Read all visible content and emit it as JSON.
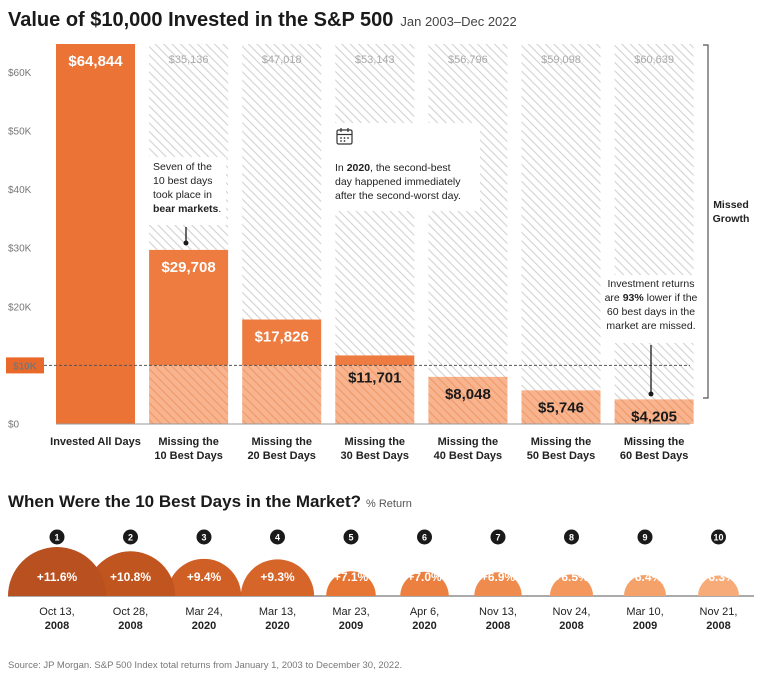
{
  "header": {
    "title": "Value of $10,000 Invested in the S&P 500",
    "period": "Jan 2003–Dec 2022"
  },
  "chart_data": [
    {
      "type": "bar",
      "title": "Value of $10,000 Invested in the S&P 500",
      "subtitle": "Jan 2003–Dec 2022",
      "categories": [
        [
          "Invested All Days",
          ""
        ],
        [
          "Missing the",
          "10 Best Days"
        ],
        [
          "Missing the",
          "20 Best Days"
        ],
        [
          "Missing the",
          "30 Best Days"
        ],
        [
          "Missing the",
          "40 Best Days"
        ],
        [
          "Missing the",
          "50 Best Days"
        ],
        [
          "Missing the",
          "60 Best Days"
        ]
      ],
      "values": [
        64844,
        29708,
        17826,
        11701,
        8048,
        5746,
        4205
      ],
      "value_labels": [
        "$64,844",
        "$29,708",
        "$17,826",
        "$11,701",
        "$8,048",
        "$5,746",
        "$4,205"
      ],
      "missed_growth_labels": [
        "",
        "$35,136",
        "$47,018",
        "$53,143",
        "$56,796",
        "$59,098",
        "$60,639"
      ],
      "y_ticks": [
        0,
        10000,
        20000,
        30000,
        40000,
        50000,
        60000
      ],
      "y_tick_labels": [
        "$0",
        "$10K",
        "$20K",
        "$30K",
        "$40K",
        "$50K",
        "$60K"
      ],
      "ylim": [
        0,
        64844
      ],
      "reference_line": {
        "value": 10000,
        "label": "$10K"
      },
      "bracket_label": [
        "Missed",
        "Growth"
      ],
      "colors": {
        "bar_main": "#ec7336",
        "bar_other": "#ee7b3f",
        "below_10k": "#f5b08e",
        "ref": "#e8692a",
        "hatch": "#d4d4d4"
      },
      "annotations": [
        {
          "lines": [
            [
              {
                "t": "Seven of the",
                "b": false
              }
            ],
            [
              {
                "t": "10 best days",
                "b": false
              }
            ],
            [
              {
                "t": "took place in",
                "b": false
              }
            ],
            [
              {
                "t": "bear markets",
                "b": true
              },
              {
                "t": ".",
                "b": false
              }
            ]
          ]
        },
        {
          "lines": [
            [
              {
                "t": "In ",
                "b": false
              },
              {
                "t": "2020",
                "b": true
              },
              {
                "t": ", the second-best",
                "b": false
              }
            ],
            [
              {
                "t": "day happened immediately",
                "b": false
              }
            ],
            [
              {
                "t": "after the second-worst day.",
                "b": false
              }
            ]
          ],
          "icon": "calendar-icon"
        },
        {
          "lines": [
            [
              {
                "t": "Investment returns",
                "b": false
              }
            ],
            [
              {
                "t": "are ",
                "b": false
              },
              {
                "t": "93%",
                "b": true
              },
              {
                "t": " lower if the",
                "b": false
              }
            ],
            [
              {
                "t": "60 best days in the",
                "b": false
              }
            ],
            [
              {
                "t": "market are missed.",
                "b": false
              }
            ]
          ]
        }
      ]
    },
    {
      "type": "bar",
      "title": "When Were the 10 Best Days in the Market?",
      "subtitle": "% Return",
      "ranks": [
        "1",
        "2",
        "3",
        "4",
        "5",
        "6",
        "7",
        "8",
        "9",
        "10"
      ],
      "values": [
        11.6,
        10.8,
        9.4,
        9.3,
        7.1,
        7.0,
        6.9,
        6.5,
        6.4,
        6.3
      ],
      "value_labels": [
        "+11.6%",
        "+10.8%",
        "+9.4%",
        "+9.3%",
        "+7.1%",
        "+7.0%",
        "+6.9%",
        "+6.5%",
        "+6.4%",
        "+6.3%"
      ],
      "dates": [
        [
          "Oct 13,",
          "2008"
        ],
        [
          "Oct 28,",
          "2008"
        ],
        [
          "Mar 24,",
          "2020"
        ],
        [
          "Mar 13,",
          "2020"
        ],
        [
          "Mar 23,",
          "2009"
        ],
        [
          "Apr 6,",
          "2020"
        ],
        [
          "Nov 13,",
          "2008"
        ],
        [
          "Nov 24,",
          "2008"
        ],
        [
          "Mar 10,",
          "2009"
        ],
        [
          "Nov 21,",
          "2008"
        ]
      ],
      "colors": [
        "#b8501f",
        "#c0551f",
        "#cf5f24",
        "#d6652a",
        "#e77634",
        "#ec8040",
        "#f08b4e",
        "#f3975d",
        "#f5a16a",
        "#f7ab79"
      ]
    }
  ],
  "footer": {
    "source": "Source: JP Morgan. S&P 500 Index total returns from January 1, 2003 to December 30, 2022."
  }
}
